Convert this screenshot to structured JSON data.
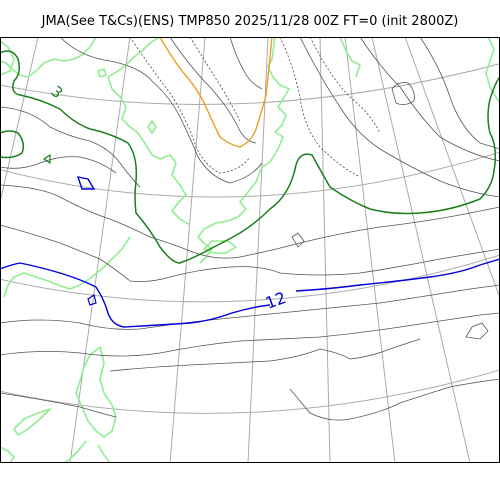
{
  "title": "JMA(See T&Cs)(ENS) TMP850 2025/11/28 00Z FT=0 (init 2800Z)",
  "colors": {
    "coastline": "#90ee90",
    "graticule": "#aaaaaa",
    "isotherm": "#555555",
    "isotherm_3": "#1a7f1a",
    "isotherm_12": "#0000dd",
    "isotherm_minus": "#e8a020",
    "frame": "#000000"
  },
  "contour_labels": {
    "label_3": "3",
    "label_12": "12"
  }
}
